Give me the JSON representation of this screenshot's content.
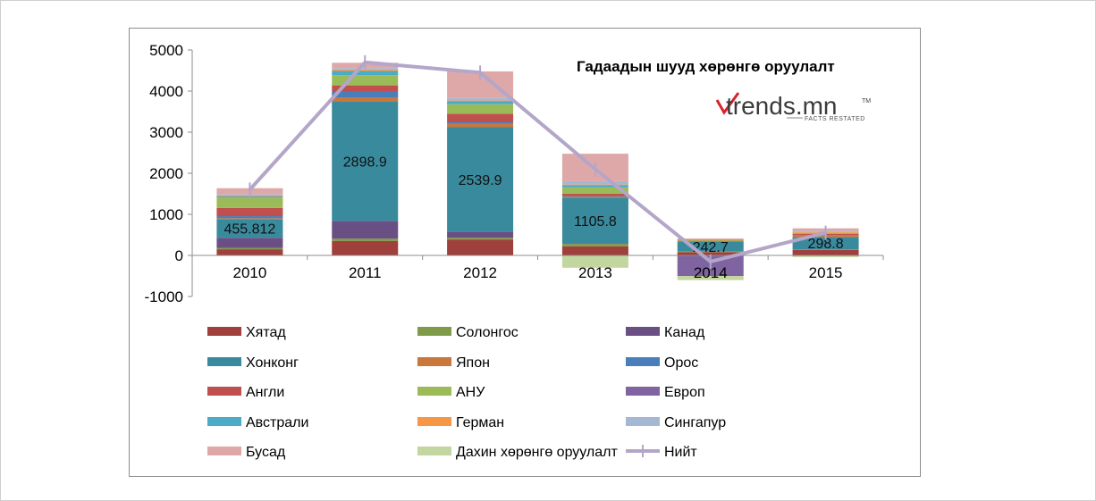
{
  "chart_data": {
    "type": "bar",
    "title": "Гадаадын шууд хөрөнгө оруулалт",
    "categories": [
      "2010",
      "2011",
      "2012",
      "2013",
      "2014",
      "2015"
    ],
    "ylim": [
      -1000,
      5000
    ],
    "yticks": [
      5000,
      4000,
      3000,
      2000,
      1000,
      0,
      -1000
    ],
    "ytick_labels": [
      "5000",
      "4000",
      "3000",
      "2000",
      "1000",
      "0",
      "-1000"
    ],
    "legend_position": "bottom",
    "series": [
      {
        "name": "Хятад",
        "color": "#a0403d",
        "values": [
          150,
          350,
          380,
          220,
          80,
          130
        ]
      },
      {
        "name": "Солонгос",
        "color": "#7f9a48",
        "values": [
          30,
          60,
          50,
          60,
          20,
          20
        ]
      },
      {
        "name": "Канад",
        "color": "#6a4f85",
        "values": [
          250,
          430,
          150,
          20,
          0,
          0
        ]
      },
      {
        "name": "Хонконг",
        "color": "#3a8a9e",
        "values": [
          455.812,
          2898.9,
          2539.9,
          1105.8,
          242.7,
          298.8
        ]
      },
      {
        "name": "Япон",
        "color": "#c9773a",
        "values": [
          20,
          100,
          80,
          30,
          20,
          50
        ]
      },
      {
        "name": "Орос",
        "color": "#4a7ebb",
        "values": [
          50,
          150,
          50,
          20,
          0,
          0
        ]
      },
      {
        "name": "Англи",
        "color": "#c0504d",
        "values": [
          200,
          150,
          200,
          50,
          0,
          30
        ]
      },
      {
        "name": "АНУ",
        "color": "#9bbb59",
        "values": [
          250,
          250,
          230,
          150,
          30,
          20
        ]
      },
      {
        "name": "Европ",
        "color": "#8064a2",
        "values": [
          0,
          0,
          0,
          0,
          -500,
          0
        ]
      },
      {
        "name": "Австрали",
        "color": "#4bacc6",
        "values": [
          30,
          100,
          70,
          50,
          0,
          0
        ]
      },
      {
        "name": "Герман",
        "color": "#f79646",
        "values": [
          20,
          30,
          20,
          20,
          0,
          20
        ]
      },
      {
        "name": "Сингапур",
        "color": "#a5b8d3",
        "values": [
          30,
          40,
          60,
          80,
          0,
          30
        ]
      },
      {
        "name": "Бусад",
        "color": "#dfa8a8",
        "values": [
          150,
          130,
          650,
          670,
          20,
          60
        ]
      },
      {
        "name": "Дахин хөрөнгө оруулалт",
        "color": "#c3d6a0",
        "values": [
          0,
          0,
          0,
          -300,
          -100,
          -40
        ]
      }
    ],
    "total": {
      "name": "Нийт",
      "color": "#b3a6c9",
      "values": [
        1600,
        4700,
        4450,
        2100,
        -150,
        550
      ]
    },
    "data_labels": [
      {
        "category_index": 0,
        "text": "455.812"
      },
      {
        "category_index": 1,
        "text": "2898.9"
      },
      {
        "category_index": 2,
        "text": "2539.9"
      },
      {
        "category_index": 3,
        "text": "1105.8"
      },
      {
        "category_index": 4,
        "text": "242.7"
      },
      {
        "category_index": 5,
        "text": "298.8"
      }
    ]
  },
  "logo": {
    "main": "trends.mn",
    "tm": "TM",
    "sub": "FACTS RESTATED",
    "accent": "#d9232d"
  }
}
